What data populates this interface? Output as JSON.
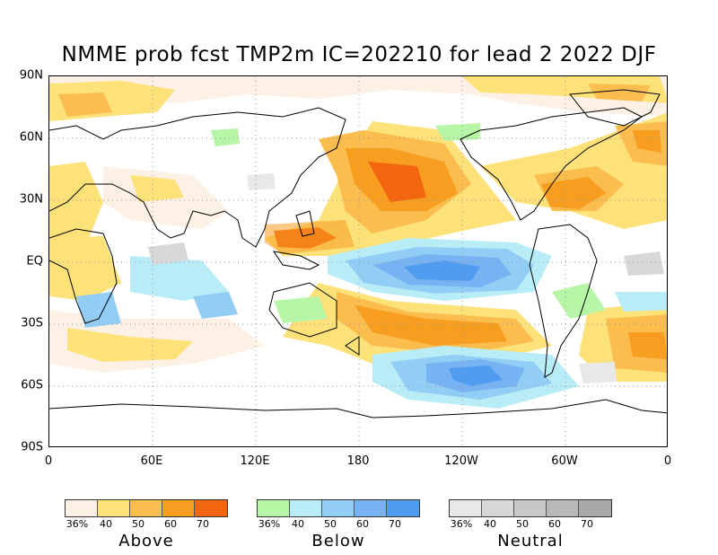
{
  "title": "NMME prob fcst TMP2m IC=202210 for lead 2 2022 DJF",
  "lat_labels": [
    "90N",
    "60N",
    "30N",
    "EQ",
    "30S",
    "60S",
    "90S"
  ],
  "lon_labels": [
    "0",
    "60E",
    "120E",
    "180",
    "120W",
    "60W",
    "0"
  ],
  "legends": [
    {
      "name": "Above",
      "ticks": [
        "36%",
        "40",
        "50",
        "60",
        "70"
      ],
      "colors": [
        "#fdf0e4",
        "#fde27a",
        "#fbbd4e",
        "#f79d1f",
        "#f4650f"
      ]
    },
    {
      "name": "Below",
      "ticks": [
        "36%",
        "40",
        "50",
        "60",
        "70"
      ],
      "colors": [
        "#b7f5a7",
        "#b8ecf7",
        "#92cdf6",
        "#77b3f2",
        "#4f9cf0"
      ]
    },
    {
      "name": "Neutral",
      "ticks": [
        "36%",
        "40",
        "50",
        "60",
        "70"
      ],
      "colors": [
        "#e8e8e8",
        "#d8d8d8",
        "#c8c8c8",
        "#b8b8b8",
        "#a8a8a8"
      ]
    }
  ]
}
